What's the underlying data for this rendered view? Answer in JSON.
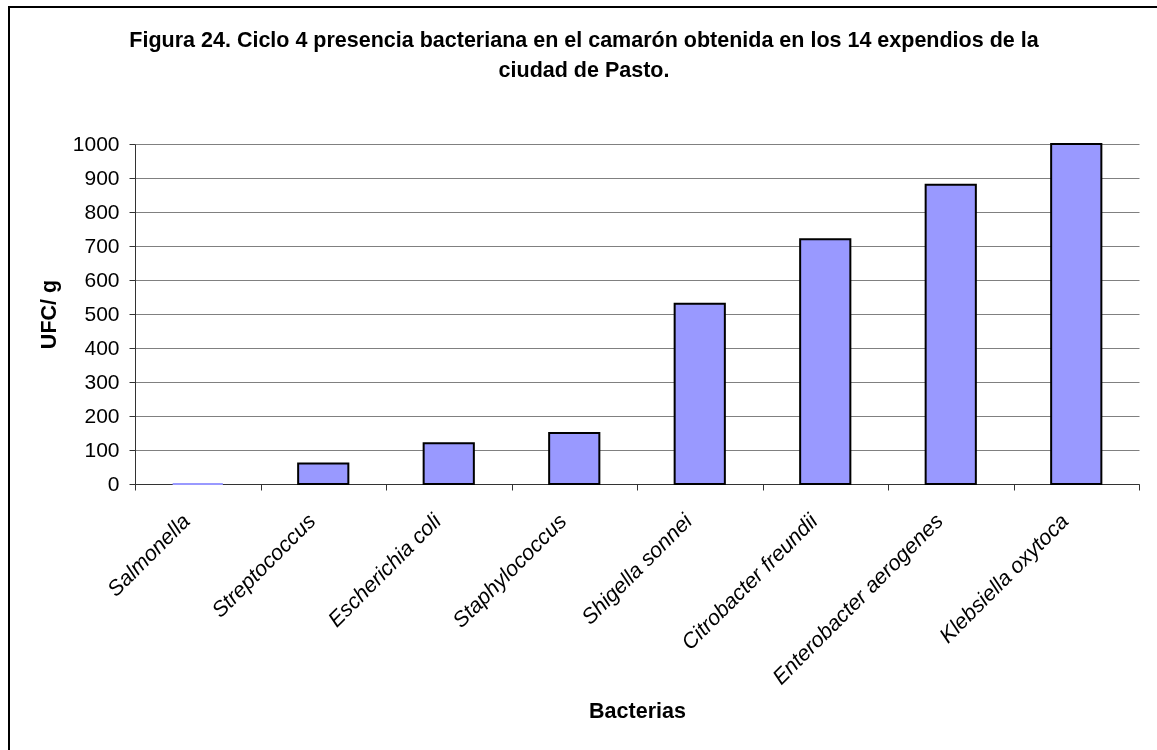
{
  "chart_data": {
    "type": "bar",
    "title": "Figura 24. Ciclo 4 presencia bacteriana en el camarón obtenida en los 14 expendios de la ciudad de Pasto.",
    "xlabel": "Bacterias",
    "ylabel": "UFC/ g",
    "categories": [
      "Salmonella",
      "Streptococcus",
      "Escherichia coli",
      "Staphylococcus",
      "Shigella sonnei",
      "Citrobacter freundii",
      "Enterobacter aerogenes",
      "Klebsiella oxytoca"
    ],
    "values": [
      0,
      60,
      120,
      150,
      530,
      720,
      880,
      1000
    ],
    "color": "#9999ff",
    "ylim": [
      0,
      1000
    ],
    "yticks": [
      0,
      100,
      200,
      300,
      400,
      500,
      600,
      700,
      800,
      900,
      1000
    ],
    "grid": "y"
  }
}
